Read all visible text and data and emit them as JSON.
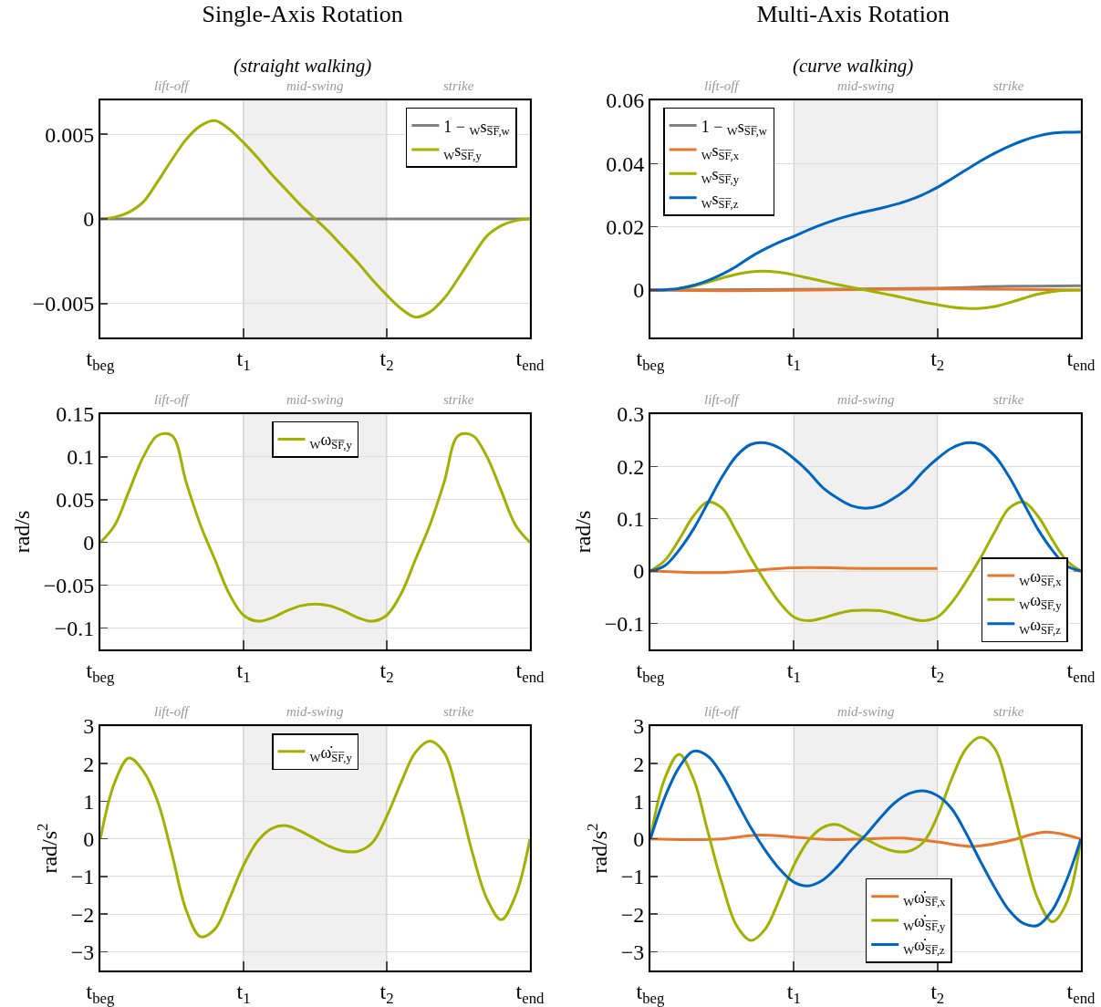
{
  "chart_data": [
    {
      "type": "line",
      "title": "Single-Axis Rotation",
      "subtitle": "(straight walking)",
      "x": [
        0,
        0.1,
        0.2,
        0.3,
        0.4,
        0.5,
        0.6,
        0.7,
        0.8,
        0.9,
        1,
        1.1,
        1.2,
        1.3,
        1.4,
        1.5,
        1.6,
        1.7,
        1.8,
        1.9,
        2,
        2.1,
        2.2,
        2.3,
        2.4,
        2.5,
        2.6,
        2.7,
        2.8,
        2.9,
        3
      ],
      "xlim": [
        0,
        3
      ],
      "xticks": [
        {
          "value": 0,
          "label": "t$_{beg}$"
        },
        {
          "value": 1,
          "label": "t$_{1}$"
        },
        {
          "value": 2,
          "label": "t$_{2}$"
        },
        {
          "value": 3,
          "label": "t$_{end}$"
        }
      ],
      "ylim": [
        -0.007,
        0.007
      ],
      "yticks": [
        {
          "value": -0.005,
          "label": "−0.005"
        },
        0,
        0.005
      ],
      "grid": "y",
      "legend": "top right",
      "marker": "none",
      "line_style": "solid",
      "bands": [
        {
          "axis": "x",
          "from": 0,
          "to": 1,
          "label": "lift-off"
        },
        {
          "axis": "x",
          "from": 1,
          "to": 2,
          "label": "mid-swing",
          "color": "#f0f0f0"
        },
        {
          "axis": "x",
          "from": 2,
          "to": 3,
          "label": "strike"
        }
      ],
      "series": [
        {
          "name": "1 − $_{W}$s$_{S̅F̅,w}$",
          "color": "#808080",
          "x": [
            0,
            1.5,
            3
          ],
          "values": [
            0,
            0,
            0
          ]
        },
        {
          "name": "$_{W}$s$_{S̅F̅,y}$",
          "color": "#a2b000",
          "values": [
            0,
            0.0001,
            0.0004,
            0.001,
            0.0022,
            0.0035,
            0.0047,
            0.0055,
            0.0058,
            0.0053,
            0.0045,
            0.0036,
            0.0026,
            0.0017,
            0.0008,
            0,
            -0.0008,
            -0.0017,
            -0.0026,
            -0.0036,
            -0.0045,
            -0.0053,
            -0.0058,
            -0.0055,
            -0.0047,
            -0.0035,
            -0.0022,
            -0.001,
            -0.0004,
            -0.0001,
            0
          ]
        }
      ]
    },
    {
      "type": "line",
      "title": "Multi-Axis Rotation",
      "subtitle": "(curve walking)",
      "x": [
        0,
        0.1,
        0.2,
        0.3,
        0.4,
        0.5,
        0.6,
        0.7,
        0.8,
        0.9,
        1,
        1.1,
        1.2,
        1.3,
        1.4,
        1.5,
        1.6,
        1.7,
        1.8,
        1.9,
        2,
        2.1,
        2.2,
        2.3,
        2.4,
        2.5,
        2.6,
        2.7,
        2.8,
        2.9,
        3
      ],
      "xlim": [
        0,
        3
      ],
      "xticks": [
        {
          "value": 0,
          "label": "t$_{beg}$"
        },
        {
          "value": 1,
          "label": "t$_{1}$"
        },
        {
          "value": 2,
          "label": "t$_{2}$"
        },
        {
          "value": 3,
          "label": "t$_{end}$"
        }
      ],
      "ylim": [
        -0.015,
        0.06
      ],
      "yticks": [
        0,
        0.02,
        0.04,
        0.06
      ],
      "grid": "y",
      "legend": "top left",
      "marker": "none",
      "line_style": "solid",
      "bands": [
        {
          "axis": "x",
          "from": 0,
          "to": 1,
          "label": "lift-off"
        },
        {
          "axis": "x",
          "from": 1,
          "to": 2,
          "label": "mid-swing",
          "color": "#f0f0f0"
        },
        {
          "axis": "x",
          "from": 2,
          "to": 3,
          "label": "strike"
        }
      ],
      "series": [
        {
          "name": "1 − $_{W}$s$_{S̅F̅,w}$",
          "color": "#808080",
          "x": [
            0,
            1,
            2,
            2.5,
            3
          ],
          "values": [
            0,
            0.0002,
            0.0006,
            0.0012,
            0.0014
          ]
        },
        {
          "name": "$_{W}$s$_{S̅F̅,x}$",
          "color": "#e8772e",
          "x": [
            0,
            0.5,
            1,
            1.5,
            2,
            2.5,
            3
          ],
          "values": [
            0,
            -0.0002,
            -0.0001,
            0.0002,
            0.0004,
            0.0003,
            0
          ]
        },
        {
          "name": "$_{W}$s$_{S̅F̅,y}$",
          "color": "#a2b000",
          "values": [
            null,
            null,
            0.0005,
            0.0012,
            0.0025,
            0.0038,
            0.005,
            0.0058,
            0.006,
            0.0056,
            0.0048,
            0.0038,
            0.0028,
            0.0018,
            0.0009,
            0,
            -0.0009,
            -0.0018,
            -0.0028,
            -0.0038,
            -0.0046,
            -0.0054,
            -0.0058,
            -0.0058,
            -0.0052,
            -0.004,
            -0.0026,
            -0.0013,
            -0.0005,
            -0.0001,
            0
          ]
        },
        {
          "name": "$_{W}$s$_{S̅F̅,z}$",
          "color": "#0065c0",
          "values": [
            0,
            0.0001,
            0.0005,
            0.0015,
            0.003,
            0.005,
            0.0075,
            0.0105,
            0.013,
            0.0152,
            0.017,
            0.019,
            0.0208,
            0.0224,
            0.0237,
            0.0248,
            0.0258,
            0.027,
            0.0284,
            0.0302,
            0.0325,
            0.0352,
            0.038,
            0.0408,
            0.0433,
            0.0455,
            0.0473,
            0.0487,
            0.0496,
            0.0499,
            0.05
          ]
        }
      ]
    },
    {
      "type": "line",
      "ylabel": "rad/s",
      "x": [
        0,
        0.1,
        0.2,
        0.3,
        0.4,
        0.5,
        0.6,
        0.7,
        0.8,
        0.9,
        1,
        1.1,
        1.2,
        1.3,
        1.4,
        1.5,
        1.6,
        1.7,
        1.8,
        1.9,
        2,
        2.1,
        2.2,
        2.3,
        2.4,
        2.5,
        2.6,
        2.7,
        2.8,
        2.9,
        3
      ],
      "xlim": [
        0,
        3
      ],
      "xticks": [
        {
          "value": 0,
          "label": "t$_{beg}$"
        },
        {
          "value": 1,
          "label": "t$_{1}$"
        },
        {
          "value": 2,
          "label": "t$_{2}$"
        },
        {
          "value": 3,
          "label": "t$_{end}$"
        }
      ],
      "ylim": [
        -0.125,
        0.15
      ],
      "yticks": [
        {
          "value": -0.1,
          "label": "−0.1"
        },
        {
          "value": -0.05,
          "label": "−0.05"
        },
        0,
        0.05,
        0.1,
        0.15
      ],
      "grid": "y",
      "legend": "top",
      "marker": "none",
      "line_style": "solid",
      "bands": [
        {
          "axis": "x",
          "from": 0,
          "to": 1,
          "label": "lift-off"
        },
        {
          "axis": "x",
          "from": 1,
          "to": 2,
          "label": "mid-swing",
          "color": "#f0f0f0"
        },
        {
          "axis": "x",
          "from": 2,
          "to": 3,
          "label": "strike"
        }
      ],
      "series": [
        {
          "name": "$_{W}$ω$_{S̅F̅,y}$",
          "color": "#a2b000",
          "values": [
            0,
            0.02,
            0.06,
            0.1,
            0.125,
            0.125,
            0.07,
            0.02,
            -0.02,
            -0.06,
            -0.085,
            -0.092,
            -0.088,
            -0.08,
            -0.074,
            -0.072,
            -0.074,
            -0.08,
            -0.088,
            -0.092,
            -0.085,
            -0.06,
            -0.02,
            0.02,
            0.07,
            0.125,
            0.125,
            0.1,
            0.06,
            0.02,
            0
          ]
        }
      ]
    },
    {
      "type": "line",
      "ylabel": "rad/s",
      "x": [
        0,
        0.1,
        0.2,
        0.3,
        0.4,
        0.5,
        0.6,
        0.7,
        0.8,
        0.9,
        1,
        1.1,
        1.2,
        1.3,
        1.4,
        1.5,
        1.6,
        1.7,
        1.8,
        1.9,
        2,
        2.1,
        2.2,
        2.3,
        2.4,
        2.5,
        2.6,
        2.7,
        2.8,
        2.9,
        3
      ],
      "xlim": [
        0,
        3
      ],
      "xticks": [
        {
          "value": 0,
          "label": "t$_{beg}$"
        },
        {
          "value": 1,
          "label": "t$_{1}$"
        },
        {
          "value": 2,
          "label": "t$_{2}$"
        },
        {
          "value": 3,
          "label": "t$_{end}$"
        }
      ],
      "ylim": [
        -0.15,
        0.3
      ],
      "yticks": [
        {
          "value": -0.1,
          "label": "−0.1"
        },
        0,
        0.1,
        0.2,
        0.3
      ],
      "grid": "y",
      "legend": "bottom right",
      "marker": "none",
      "line_style": "solid",
      "bands": [
        {
          "axis": "x",
          "from": 0,
          "to": 1,
          "label": "lift-off"
        },
        {
          "axis": "x",
          "from": 1,
          "to": 2,
          "label": "mid-swing",
          "color": "#f0f0f0"
        },
        {
          "axis": "x",
          "from": 2,
          "to": 3,
          "label": "strike"
        }
      ],
      "series": [
        {
          "name": "$_{W}$ω$_{S̅F̅,x}$",
          "color": "#e8772e",
          "x": [
            0,
            0.5,
            1,
            1.5,
            2,
            2.5,
            2.95,
            3
          ],
          "values": [
            0,
            -0.003,
            0.006,
            0.005,
            0.005,
            null,
            0.001,
            0
          ]
        },
        {
          "name": "$_{W}$ω$_{S̅F̅,y}$",
          "color": "#a2b000",
          "values": [
            0,
            0.02,
            0.06,
            0.105,
            0.132,
            0.12,
            0.075,
            0.025,
            -0.02,
            -0.06,
            -0.088,
            -0.095,
            -0.09,
            -0.082,
            -0.076,
            -0.075,
            -0.076,
            -0.082,
            -0.09,
            -0.095,
            -0.088,
            -0.06,
            -0.02,
            0.025,
            0.075,
            0.12,
            0.132,
            0.105,
            0.06,
            0.02,
            0
          ]
        },
        {
          "name": "$_{W}$ω$_{S̅F̅,z}$",
          "color": "#0065c0",
          "values": [
            0,
            0.01,
            0.04,
            0.08,
            0.13,
            0.18,
            0.22,
            0.242,
            0.245,
            0.235,
            0.215,
            0.19,
            0.16,
            0.14,
            0.125,
            0.12,
            0.125,
            0.14,
            0.16,
            0.19,
            0.215,
            0.235,
            0.245,
            0.242,
            0.22,
            0.18,
            0.13,
            0.08,
            0.04,
            0.01,
            0
          ]
        }
      ]
    },
    {
      "type": "line",
      "ylabel": "rad/s$^{2}$",
      "x": [
        0,
        0.1,
        0.2,
        0.3,
        0.4,
        0.5,
        0.6,
        0.7,
        0.8,
        0.9,
        1,
        1.1,
        1.2,
        1.3,
        1.4,
        1.5,
        1.6,
        1.7,
        1.8,
        1.9,
        2,
        2.1,
        2.2,
        2.3,
        2.4,
        2.5,
        2.6,
        2.7,
        2.8,
        2.9,
        3
      ],
      "xlim": [
        0,
        3
      ],
      "xticks": [
        {
          "value": 0,
          "label": "t$_{beg}$"
        },
        {
          "value": 1,
          "label": "t$_{1}$"
        },
        {
          "value": 2,
          "label": "t$_{2}$"
        },
        {
          "value": 3,
          "label": "t$_{end}$"
        }
      ],
      "ylim": [
        -3.5,
        3
      ],
      "yticks": [
        {
          "value": -3,
          "label": "−3"
        },
        {
          "value": -2,
          "label": "−2"
        },
        {
          "value": -1,
          "label": "−1"
        },
        0,
        1,
        2,
        3
      ],
      "grid": "y",
      "legend": "top",
      "marker": "none",
      "line_style": "solid",
      "bands": [
        {
          "axis": "x",
          "from": 0,
          "to": 1,
          "label": "lift-off"
        },
        {
          "axis": "x",
          "from": 1,
          "to": 2,
          "label": "mid-swing",
          "color": "#f0f0f0"
        },
        {
          "axis": "x",
          "from": 2,
          "to": 3,
          "label": "strike"
        }
      ],
      "series": [
        {
          "name": "$_{W}$ω̇$_{S̅F̅,y}$",
          "color": "#a2b000",
          "values": [
            0,
            1.5,
            2.15,
            1.8,
            1,
            -0.4,
            -1.9,
            -2.6,
            -2.4,
            -1.6,
            -0.7,
            -0.05,
            0.28,
            0.35,
            0.2,
            0,
            -0.2,
            -0.33,
            -0.33,
            -0.1,
            0.6,
            1.5,
            2.3,
            2.6,
            2.3,
            1.1,
            -0.4,
            -1.6,
            -2.15,
            -1.5,
            0
          ]
        }
      ]
    },
    {
      "type": "line",
      "ylabel": "rad/s$^{2}$",
      "x": [
        0,
        0.1,
        0.2,
        0.3,
        0.4,
        0.5,
        0.6,
        0.7,
        0.8,
        0.9,
        1,
        1.1,
        1.2,
        1.3,
        1.4,
        1.5,
        1.6,
        1.7,
        1.8,
        1.9,
        2,
        2.1,
        2.2,
        2.3,
        2.4,
        2.5,
        2.6,
        2.7,
        2.8,
        2.9,
        3
      ],
      "xlim": [
        0,
        3
      ],
      "xticks": [
        {
          "value": 0,
          "label": "t$_{beg}$"
        },
        {
          "value": 1,
          "label": "t$_{1}$"
        },
        {
          "value": 2,
          "label": "t$_{2}$"
        },
        {
          "value": 3,
          "label": "t$_{end}$"
        }
      ],
      "ylim": [
        -3.5,
        3
      ],
      "yticks": [
        {
          "value": -3,
          "label": "−3"
        },
        {
          "value": -2,
          "label": "−2"
        },
        {
          "value": -1,
          "label": "−1"
        },
        0,
        1,
        2,
        3
      ],
      "grid": "y",
      "legend": "bottom",
      "marker": "none",
      "line_style": "solid",
      "bands": [
        {
          "axis": "x",
          "from": 0,
          "to": 1,
          "label": "lift-off"
        },
        {
          "axis": "x",
          "from": 1,
          "to": 2,
          "label": "mid-swing",
          "color": "#f0f0f0"
        },
        {
          "axis": "x",
          "from": 2,
          "to": 3,
          "label": "strike"
        }
      ],
      "series": [
        {
          "name": "$_{W}$ω̇$_{S̅F̅,x}$",
          "color": "#e8772e",
          "x": [
            0,
            0.25,
            0.5,
            0.75,
            1,
            1.25,
            1.5,
            1.75,
            2,
            2.25,
            2.5,
            2.75,
            3
          ],
          "values": [
            0,
            -0.02,
            0,
            0.1,
            0.05,
            -0.02,
            0,
            0.02,
            -0.08,
            -0.2,
            -0.05,
            0.18,
            0
          ]
        },
        {
          "name": "$_{W}$ω̇$_{S̅F̅,y}$",
          "color": "#a2b000",
          "values": [
            0,
            1.6,
            2.25,
            1.6,
            0.2,
            -1.2,
            -2.3,
            -2.7,
            -2.4,
            -1.6,
            -0.7,
            -0.05,
            0.3,
            0.38,
            0.2,
            0,
            -0.2,
            -0.33,
            -0.33,
            -0.1,
            0.6,
            1.6,
            2.4,
            2.7,
            2.4,
            1.2,
            -0.3,
            -1.6,
            -2.2,
            -1.7,
            0
          ]
        },
        {
          "name": "$_{W}$ω̇$_{S̅F̅,z}$",
          "color": "#0065c0",
          "values": [
            0,
            1.1,
            1.9,
            2.33,
            2.2,
            1.7,
            1,
            0.3,
            -0.3,
            -0.8,
            -1.15,
            -1.25,
            -1.1,
            -0.75,
            -0.3,
            0.1,
            0.55,
            0.95,
            1.2,
            1.28,
            1.15,
            0.8,
            0.15,
            -0.6,
            -1.3,
            -1.9,
            -2.25,
            -2.3,
            -1.9,
            -1.1,
            0
          ]
        }
      ]
    }
  ]
}
